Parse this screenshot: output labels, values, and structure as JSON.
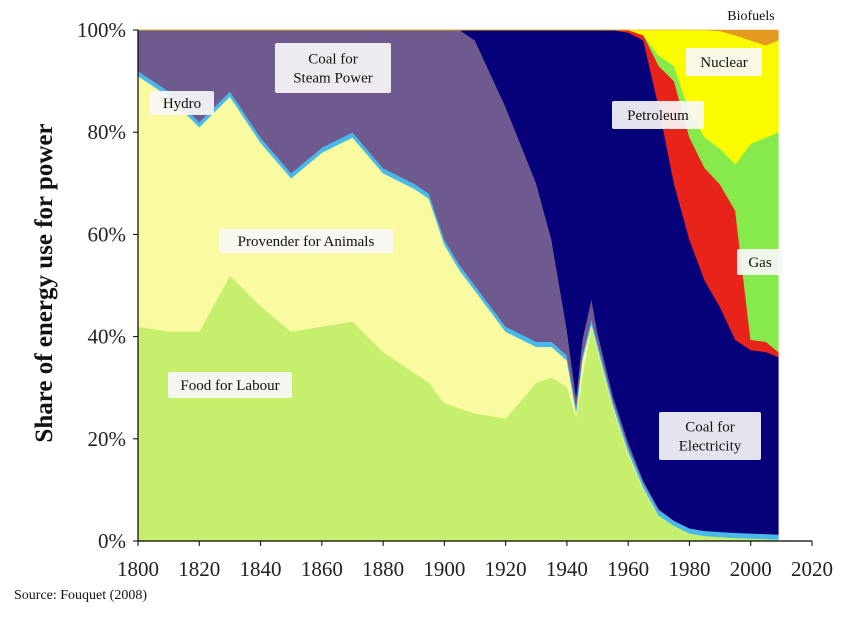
{
  "chart_data": {
    "type": "area",
    "stacked": true,
    "normalized_percent": true,
    "title": "",
    "xlabel": "",
    "ylabel": "Share of energy use for power",
    "xlim": [
      1800,
      2020
    ],
    "ylim": [
      0,
      100
    ],
    "x_ticks": [
      "1800",
      "1820",
      "1840",
      "1860",
      "1880",
      "1900",
      "1920",
      "1940",
      "1960",
      "1980",
      "2000",
      "2020"
    ],
    "y_ticks": [
      "0%",
      "20%",
      "40%",
      "60%",
      "80%",
      "100%"
    ],
    "grid": false,
    "legend": "none (series labelled directly on areas)",
    "x": [
      1800,
      1810,
      1820,
      1830,
      1840,
      1850,
      1860,
      1870,
      1880,
      1890,
      1895,
      1900,
      1905,
      1910,
      1920,
      1930,
      1935,
      1940,
      1943,
      1945,
      1948,
      1950,
      1955,
      1960,
      1965,
      1970,
      1975,
      1980,
      1985,
      1990,
      1995,
      2000,
      2005,
      2009
    ],
    "series": [
      {
        "name": "Food for Labour",
        "color": "#c7ef6e",
        "values": [
          42,
          41,
          41,
          52,
          46,
          41,
          42,
          43,
          37,
          33,
          31,
          27,
          26,
          25,
          24,
          31,
          32,
          30,
          24,
          32,
          42,
          37,
          26,
          17,
          10,
          5,
          3,
          1.5,
          1,
          0.8,
          0.6,
          0.5,
          0.4,
          0.3
        ]
      },
      {
        "name": "Provender for Animals",
        "color": "#fafaa0",
        "values": [
          49,
          46,
          40,
          35,
          32,
          30,
          34,
          36,
          35,
          36,
          36,
          31,
          27,
          24,
          17,
          7,
          6,
          5,
          1,
          3,
          0.5,
          0.5,
          0.5,
          0.5,
          0.3,
          0,
          0,
          0,
          0,
          0,
          0,
          0,
          0,
          0
        ]
      },
      {
        "name": "Hydro",
        "color": "#49b9ea",
        "values": [
          1,
          1,
          1,
          1,
          1,
          1,
          1,
          1,
          1,
          1,
          1,
          1,
          1,
          1,
          1,
          1,
          1,
          1,
          1,
          1,
          1,
          1,
          1,
          1,
          1,
          1,
          1,
          1,
          1,
          1,
          1,
          1,
          1,
          1
        ]
      },
      {
        "name": "Coal for Steam Power",
        "color": "#6f5a8f",
        "values": [
          8,
          12,
          18,
          12,
          21,
          28,
          23,
          20,
          27,
          30,
          32,
          41,
          46,
          48,
          43,
          31,
          20,
          5,
          2,
          3,
          4,
          2,
          1,
          1,
          0.5,
          0.3,
          0,
          0,
          0,
          0,
          0,
          0,
          0,
          0
        ]
      },
      {
        "name": "Coal for Electricity",
        "color": "#06007a",
        "values": [
          0,
          0,
          0,
          0,
          0,
          0,
          0,
          0,
          0,
          0,
          0,
          0,
          0,
          2,
          15,
          30,
          41,
          58,
          71,
          60,
          52.5,
          58.5,
          71.5,
          80.5,
          86.2,
          78.7,
          66,
          56.5,
          49,
          44,
          37.4,
          35.5,
          35.6,
          34.7
        ]
      },
      {
        "name": "Petroleum",
        "color": "#e8231a",
        "values": [
          0,
          0,
          0,
          0,
          0,
          0,
          0,
          0,
          0,
          0,
          0,
          0,
          0,
          0,
          0,
          0,
          0,
          0,
          0,
          0,
          0,
          0,
          0,
          0.5,
          1,
          8,
          20,
          20,
          22,
          24,
          25,
          2,
          2,
          1
        ]
      },
      {
        "name": "Gas",
        "color": "#86ea4c",
        "values": [
          0,
          0,
          0,
          0,
          0,
          0,
          0,
          0,
          0,
          0,
          0,
          0,
          0,
          0,
          0,
          0,
          0,
          0,
          0,
          0,
          0,
          0,
          0,
          0,
          0,
          2,
          3,
          5,
          6,
          7,
          9,
          38,
          40,
          43
        ]
      },
      {
        "name": "Nuclear",
        "color": "#fbfb00",
        "values": [
          0,
          0,
          0,
          0,
          0,
          0,
          0,
          0,
          0,
          0,
          0,
          0,
          0,
          0,
          0,
          0,
          0,
          0,
          0,
          0,
          0,
          0,
          0,
          0,
          1,
          5,
          7,
          16,
          21,
          23,
          25,
          20,
          18,
          18
        ]
      },
      {
        "name": "Biofuels",
        "color": "#e39a1e",
        "values": [
          0,
          0,
          0,
          0,
          0,
          0,
          0,
          0,
          0,
          0,
          0,
          0,
          0,
          0,
          0,
          0,
          0,
          0,
          0,
          0,
          0,
          0,
          0,
          0,
          0,
          0,
          0,
          0,
          0,
          0.2,
          1,
          2,
          3,
          2
        ]
      }
    ],
    "annotations": [
      {
        "text": "Coal for Steam Power",
        "lines": [
          "Coal for",
          "Steam Power"
        ]
      },
      {
        "text": "Hydro",
        "lines": [
          "Hydro"
        ]
      },
      {
        "text": "Provender for Animals",
        "lines": [
          "Provender for Animals"
        ]
      },
      {
        "text": "Food for Labour",
        "lines": [
          "Food for Labour"
        ]
      },
      {
        "text": "Petroleum",
        "lines": [
          "Petroleum"
        ]
      },
      {
        "text": "Nuclear",
        "lines": [
          "Nuclear"
        ]
      },
      {
        "text": "Biofuels",
        "lines": [
          "Biofuels"
        ]
      },
      {
        "text": "Gas",
        "lines": [
          "Gas"
        ]
      },
      {
        "text": "Coal for Electricity",
        "lines": [
          "Coal for",
          "Electricity"
        ]
      }
    ]
  },
  "source": "Source: Fouquet (2008)"
}
